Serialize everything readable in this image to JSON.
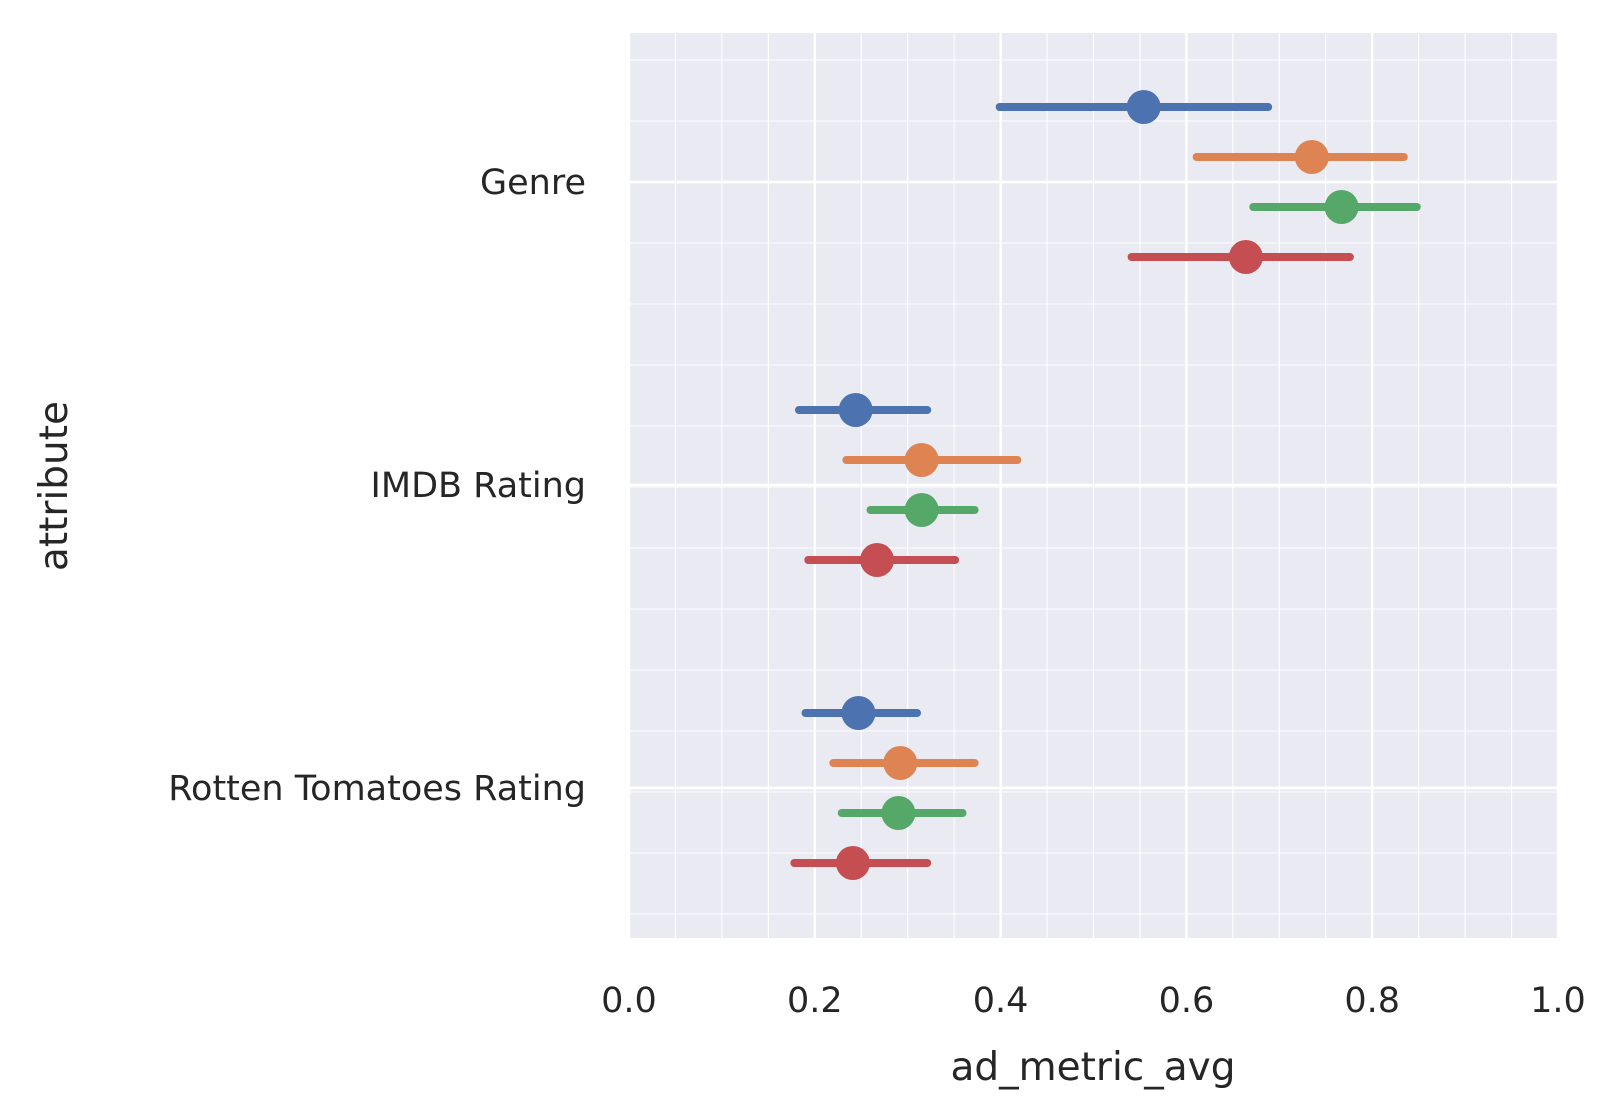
{
  "chart_data": {
    "type": "point-range",
    "xlabel": "ad_metric_avg",
    "ylabel": "attribute",
    "xlim": [
      0.0,
      1.0
    ],
    "x_ticks": [
      "0.0",
      "0.2",
      "0.4",
      "0.6",
      "0.8",
      "1.0"
    ],
    "x_tick_values": [
      0.0,
      0.2,
      0.4,
      0.6,
      0.8,
      1.0
    ],
    "grid": true,
    "legend": "none",
    "categories": [
      "Genre",
      "IMDB Rating",
      "Rotten Tomatoes Rating"
    ],
    "series": [
      {
        "color": "#4c72b0",
        "values": [
          0.554,
          0.244,
          0.247
        ],
        "ci_low": [
          0.399,
          0.183,
          0.19
        ],
        "ci_high": [
          0.688,
          0.321,
          0.31
        ]
      },
      {
        "color": "#dd8452",
        "values": [
          0.735,
          0.315,
          0.292
        ],
        "ci_low": [
          0.611,
          0.234,
          0.22
        ],
        "ci_high": [
          0.834,
          0.418,
          0.372
        ]
      },
      {
        "color": "#55a868",
        "values": [
          0.767,
          0.315,
          0.29
        ],
        "ci_low": [
          0.672,
          0.26,
          0.229
        ],
        "ci_high": [
          0.848,
          0.372,
          0.359
        ]
      },
      {
        "color": "#c44e52",
        "values": [
          0.664,
          0.267,
          0.241
        ],
        "ci_low": [
          0.541,
          0.193,
          0.178
        ],
        "ci_high": [
          0.776,
          0.351,
          0.321
        ]
      }
    ]
  }
}
